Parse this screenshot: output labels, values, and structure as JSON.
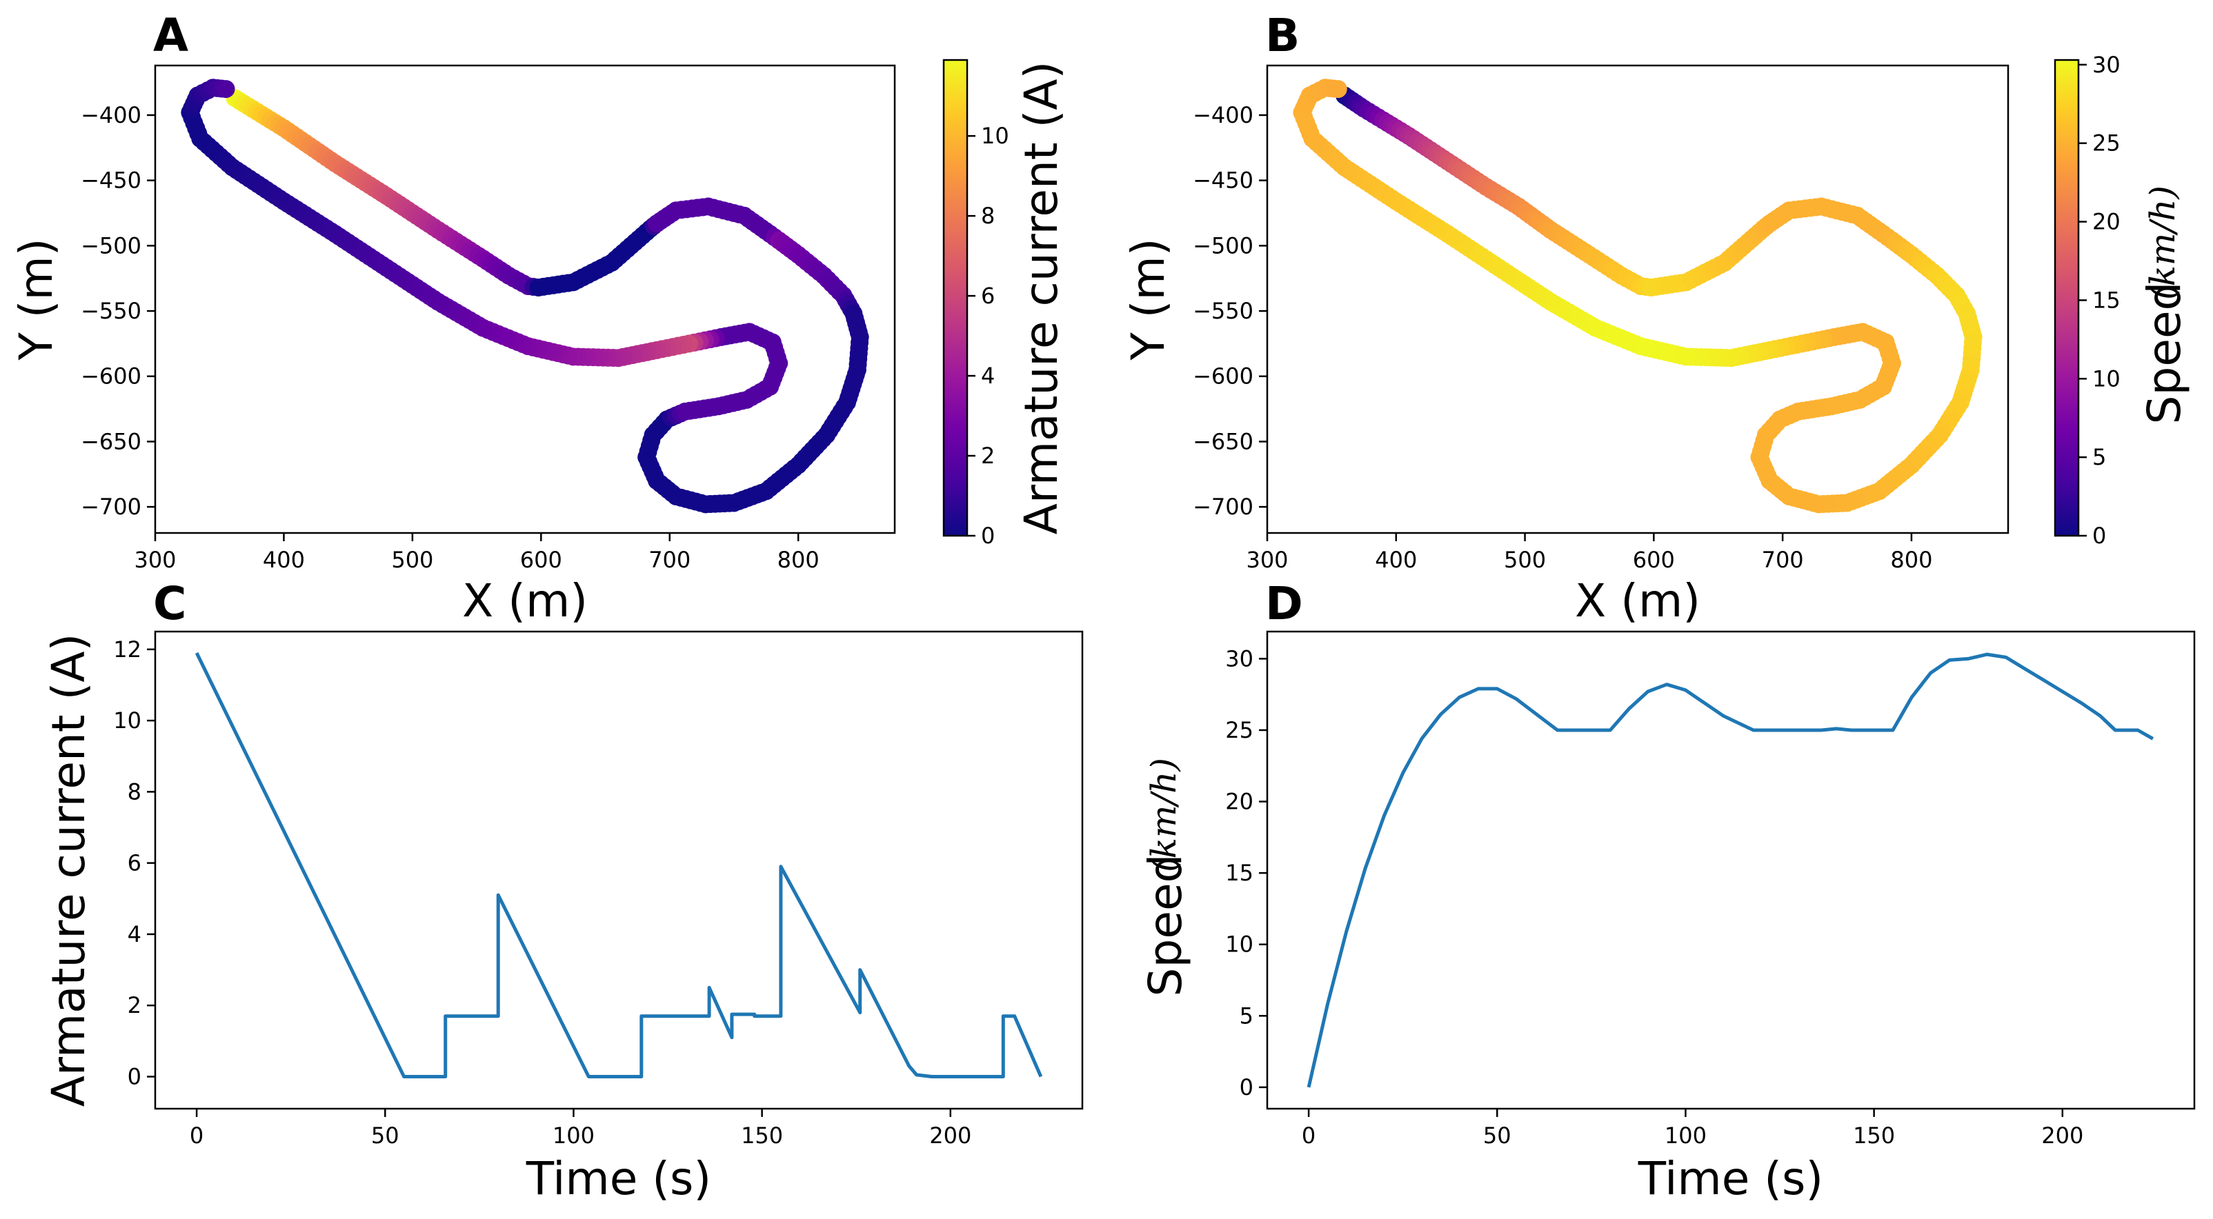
{
  "colormap": [
    "#0d0887",
    "#46039f",
    "#7201a8",
    "#9c179e",
    "#bd3786",
    "#d8576b",
    "#ed7953",
    "#fb9f3a",
    "#fdca26",
    "#f0f921"
  ],
  "series_color": "#1f77b4",
  "chart_data": [
    {
      "id": "A",
      "type": "scatter",
      "letter": "A",
      "xlabel": "X (m)",
      "ylabel": "Y (m)",
      "xlim": [
        300,
        875
      ],
      "ylim": [
        -720,
        -362
      ],
      "xticks": [
        300,
        400,
        500,
        600,
        700,
        800
      ],
      "yticks": [
        -400,
        -450,
        -500,
        -550,
        -600,
        -650,
        -700
      ],
      "colorbar": {
        "label": "Armature current (A)",
        "range": [
          0,
          11.9
        ],
        "ticks": [
          0,
          2,
          4,
          6,
          8,
          10
        ]
      },
      "track_points": [
        [
          362,
          -387,
          11.9
        ],
        [
          400,
          -410,
          9.5
        ],
        [
          440,
          -437,
          7.8
        ],
        [
          480,
          -462,
          6.2
        ],
        [
          520,
          -488,
          4.6
        ],
        [
          555,
          -510,
          3.0
        ],
        [
          575,
          -523,
          2.0
        ],
        [
          590,
          -531,
          1.7
        ],
        [
          598,
          -532,
          0.0
        ],
        [
          625,
          -528,
          0.0
        ],
        [
          655,
          -513,
          0.0
        ],
        [
          685,
          -487,
          0.0
        ],
        [
          690,
          -483,
          1.7
        ],
        [
          705,
          -473,
          1.7
        ],
        [
          730,
          -470,
          1.7
        ],
        [
          758,
          -477,
          1.7
        ],
        [
          778,
          -491,
          1.7
        ],
        [
          785,
          -496,
          3.0
        ],
        [
          800,
          -507,
          2.5
        ],
        [
          820,
          -523,
          2.0
        ],
        [
          835,
          -538,
          1.5
        ],
        [
          843,
          -552,
          0.3
        ],
        [
          848,
          -570,
          0.3
        ],
        [
          846,
          -595,
          0.2
        ],
        [
          838,
          -620,
          0.2
        ],
        [
          822,
          -645,
          0.1
        ],
        [
          800,
          -668,
          0.1
        ],
        [
          775,
          -688,
          0.1
        ],
        [
          750,
          -697,
          0.1
        ],
        [
          728,
          -698,
          0.1
        ],
        [
          705,
          -692,
          0.1
        ],
        [
          690,
          -680,
          0.1
        ],
        [
          682,
          -662,
          0.1
        ],
        [
          687,
          -645,
          0.1
        ],
        [
          698,
          -633,
          0.1
        ],
        [
          712,
          -627,
          1.7
        ],
        [
          738,
          -623,
          1.7
        ],
        [
          760,
          -618,
          1.7
        ],
        [
          778,
          -608,
          1.7
        ],
        [
          785,
          -590,
          1.7
        ],
        [
          780,
          -574,
          1.7
        ],
        [
          762,
          -566,
          1.7
        ],
        [
          740,
          -570,
          1.7
        ],
        [
          715,
          -575,
          6.0
        ],
        [
          690,
          -580,
          5.3
        ],
        [
          660,
          -586,
          4.5
        ],
        [
          625,
          -585,
          3.7
        ],
        [
          590,
          -577,
          3.0
        ],
        [
          555,
          -563,
          2.4
        ],
        [
          520,
          -543,
          1.9
        ],
        [
          480,
          -517,
          1.4
        ],
        [
          440,
          -491,
          1.0
        ],
        [
          400,
          -466,
          0.6
        ],
        [
          360,
          -440,
          0.3
        ],
        [
          335,
          -418,
          0.1
        ],
        [
          327,
          -398,
          0.1
        ],
        [
          333,
          -385,
          0.5
        ],
        [
          345,
          -379,
          1.0
        ],
        [
          355,
          -380,
          1.5
        ]
      ]
    },
    {
      "id": "B",
      "type": "scatter",
      "letter": "B",
      "xlabel": "X (m)",
      "ylabel": "Y (m)",
      "xlim": [
        300,
        875
      ],
      "ylim": [
        -720,
        -362
      ],
      "xticks": [
        300,
        400,
        500,
        600,
        700,
        800
      ],
      "yticks": [
        -400,
        -450,
        -500,
        -550,
        -600,
        -650,
        -700
      ],
      "colorbar": {
        "label": "Speed",
        "unit": "(km/h)",
        "range": [
          0,
          30.3
        ],
        "ticks": [
          0,
          5,
          10,
          15,
          20,
          25,
          30
        ]
      },
      "track_points": [
        [
          360,
          -385,
          0
        ],
        [
          375,
          -395,
          4
        ],
        [
          390,
          -404,
          8
        ],
        [
          410,
          -416,
          12
        ],
        [
          430,
          -429,
          15
        ],
        [
          450,
          -442,
          18
        ],
        [
          470,
          -455,
          20
        ],
        [
          495,
          -470,
          22
        ],
        [
          520,
          -488,
          24
        ],
        [
          550,
          -507,
          25.5
        ],
        [
          575,
          -523,
          26.5
        ],
        [
          590,
          -531,
          27.2
        ],
        [
          598,
          -532,
          27.9
        ],
        [
          625,
          -528,
          27.5
        ],
        [
          655,
          -513,
          26.5
        ],
        [
          685,
          -487,
          25.3
        ],
        [
          690,
          -483,
          25
        ],
        [
          705,
          -473,
          25
        ],
        [
          730,
          -470,
          25
        ],
        [
          758,
          -477,
          25
        ],
        [
          778,
          -491,
          25
        ],
        [
          785,
          -496,
          25.3
        ],
        [
          800,
          -507,
          26.3
        ],
        [
          820,
          -523,
          27.5
        ],
        [
          835,
          -538,
          28.0
        ],
        [
          843,
          -552,
          28.1
        ],
        [
          848,
          -570,
          28.0
        ],
        [
          846,
          -595,
          27.6
        ],
        [
          838,
          -620,
          27.1
        ],
        [
          822,
          -645,
          26.5
        ],
        [
          800,
          -668,
          26.0
        ],
        [
          775,
          -688,
          25.5
        ],
        [
          750,
          -697,
          25.2
        ],
        [
          728,
          -698,
          25
        ],
        [
          705,
          -692,
          25
        ],
        [
          690,
          -680,
          25
        ],
        [
          682,
          -662,
          25
        ],
        [
          687,
          -645,
          25
        ],
        [
          698,
          -633,
          25
        ],
        [
          712,
          -627,
          25
        ],
        [
          738,
          -623,
          25.1
        ],
        [
          760,
          -618,
          25.1
        ],
        [
          778,
          -608,
          25
        ],
        [
          785,
          -590,
          25
        ],
        [
          780,
          -574,
          25
        ],
        [
          762,
          -566,
          25
        ],
        [
          740,
          -570,
          25
        ],
        [
          715,
          -575,
          26.5
        ],
        [
          690,
          -580,
          28
        ],
        [
          660,
          -586,
          29.3
        ],
        [
          625,
          -585,
          30
        ],
        [
          590,
          -577,
          30.3
        ],
        [
          555,
          -563,
          30.1
        ],
        [
          520,
          -543,
          29.5
        ],
        [
          480,
          -517,
          28.5
        ],
        [
          440,
          -491,
          27.6
        ],
        [
          400,
          -466,
          26.6
        ],
        [
          360,
          -440,
          25.7
        ],
        [
          335,
          -418,
          25
        ],
        [
          327,
          -398,
          25
        ],
        [
          333,
          -385,
          24.8
        ],
        [
          345,
          -379,
          24.6
        ],
        [
          355,
          -380,
          24.4
        ]
      ]
    },
    {
      "id": "C",
      "type": "line",
      "letter": "C",
      "xlabel": "Time (s)",
      "ylabel": "Armature current (A)",
      "xlim": [
        -11,
        235
      ],
      "ylim": [
        -0.9,
        12.5
      ],
      "xticks": [
        0,
        50,
        100,
        150,
        200
      ],
      "yticks": [
        0,
        2,
        4,
        6,
        8,
        10,
        12
      ],
      "x": [
        0,
        55,
        66,
        66,
        80,
        80,
        104,
        118,
        118,
        136,
        136,
        142,
        142,
        148,
        148,
        155,
        155,
        176,
        176,
        189,
        191,
        195,
        214,
        214,
        217,
        224
      ],
      "y": [
        11.9,
        0,
        0,
        1.7,
        1.7,
        5.1,
        0,
        0,
        1.7,
        1.7,
        2.5,
        1.1,
        1.75,
        1.75,
        1.7,
        1.7,
        5.9,
        1.8,
        3.0,
        0.3,
        0.05,
        0,
        0,
        1.7,
        1.7,
        0
      ]
    },
    {
      "id": "D",
      "type": "line",
      "letter": "D",
      "xlabel": "Time (s)",
      "ylabel": "Speed",
      "ylabel_unit": "(km/h)",
      "xlim": [
        -11,
        235
      ],
      "ylim": [
        -1.5,
        31.9
      ],
      "xticks": [
        0,
        50,
        100,
        150,
        200
      ],
      "yticks": [
        0,
        5,
        10,
        15,
        20,
        25,
        30
      ],
      "x": [
        0,
        5,
        10,
        15,
        20,
        25,
        30,
        35,
        40,
        45,
        50,
        55,
        60,
        66,
        80,
        85,
        90,
        95,
        100,
        105,
        110,
        118,
        136,
        140,
        144,
        155,
        160,
        165,
        170,
        175,
        180,
        185,
        190,
        195,
        200,
        205,
        210,
        214,
        220,
        224
      ],
      "y": [
        0,
        5.8,
        10.9,
        15.3,
        19.0,
        22.0,
        24.4,
        26.1,
        27.3,
        27.9,
        27.9,
        27.2,
        26.2,
        25,
        25,
        26.5,
        27.7,
        28.2,
        27.8,
        26.9,
        26.0,
        25,
        25,
        25.1,
        25,
        25,
        27.3,
        29.0,
        29.9,
        30.0,
        30.3,
        30.1,
        29.3,
        28.5,
        27.7,
        26.9,
        26.0,
        25,
        25,
        24.4
      ]
    }
  ]
}
